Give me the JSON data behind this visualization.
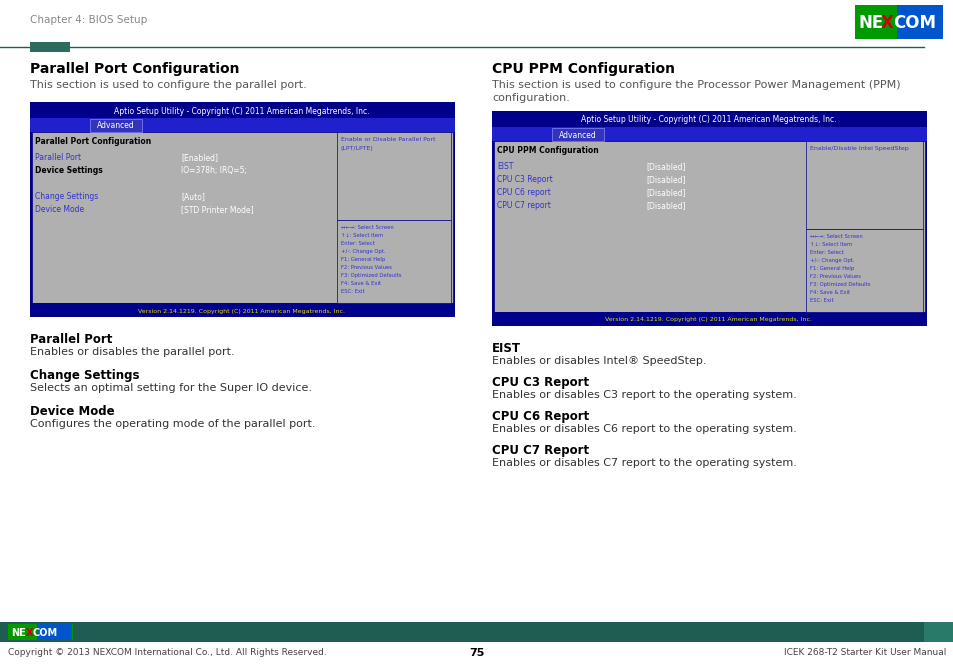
{
  "page_title": "Chapter 4: BIOS Setup",
  "left_section": {
    "title": "Parallel Port Configuration",
    "subtitle": "This section is used to configure the parallel port.",
    "bios_header": "Aptio Setup Utility - Copyright (C) 2011 American Megatrends, Inc.",
    "bios_tab": "Advanced",
    "bios_section_title": "Parallel Port Configuration",
    "bios_items": [
      {
        "label": "Parallel Port",
        "value": "[Enabled]",
        "bold_label": false,
        "blue_label": true
      },
      {
        "label": "Device Settings",
        "value": "IO=378h; IRQ=5;",
        "bold_label": true,
        "blue_label": false
      },
      {
        "label": "",
        "value": "",
        "bold_label": false,
        "blue_label": false
      },
      {
        "label": "Change Settings",
        "value": "[Auto]",
        "bold_label": false,
        "blue_label": true
      },
      {
        "label": "Device Mode",
        "value": "[STD Printer Mode]",
        "bold_label": false,
        "blue_label": true
      }
    ],
    "bios_help_title": "Enable or Disable Parallel Port\n(LPT/LPTE)",
    "bios_keys": [
      "↔←→: Select Screen",
      "↑↓: Select Item",
      "Enter: Select",
      "+/-: Change Opt.",
      "F1: General Help",
      "F2: Previous Values",
      "F3: Optimized Defaults",
      "F4: Save & Exit",
      "ESC: Exit"
    ],
    "bios_footer": "Version 2.14.1219. Copyright (C) 2011 American Megatrends, Inc.",
    "descriptions": [
      {
        "title": "Parallel Port",
        "text": "Enables or disables the parallel port."
      },
      {
        "title": "Change Settings",
        "text": "Selects an optimal setting for the Super IO device."
      },
      {
        "title": "Device Mode",
        "text": "Configures the operating mode of the parallel port."
      }
    ]
  },
  "right_section": {
    "title": "CPU PPM Configuration",
    "subtitle_line1": "This section is used to configure the Processor Power Management (PPM)",
    "subtitle_line2": "configuration.",
    "bios_header": "Aptio Setup Utility - Copyright (C) 2011 American Megatrends, Inc.",
    "bios_tab": "Advanced",
    "bios_section_title": "CPU PPM Configuration",
    "bios_items": [
      {
        "label": "EIST",
        "value": "[Disabled]",
        "bold_label": false,
        "blue_label": true
      },
      {
        "label": "CPU C3 Report",
        "value": "[Disabled]",
        "bold_label": false,
        "blue_label": true
      },
      {
        "label": "CPU C6 report",
        "value": "[Disabled]",
        "bold_label": false,
        "blue_label": true
      },
      {
        "label": "CPU C7 report",
        "value": "[Disabled]",
        "bold_label": false,
        "blue_label": true
      }
    ],
    "bios_help_title": "Enable/Disable Intel SpeedStep",
    "bios_keys": [
      "↔←→: Select Screen",
      "↑↓: Select Item",
      "Enter: Select",
      "+/-: Change Opt.",
      "F1: General Help",
      "F2: Previous Values",
      "F3: Optimized Defaults",
      "F4: Save & Exit",
      "ESC: Exit"
    ],
    "bios_footer": "Version 2.14.1219. Copyright (C) 2011 American Megatrends, Inc.",
    "descriptions": [
      {
        "title": "EIST",
        "text": "Enables or disables Intel® SpeedStep."
      },
      {
        "title": "CPU C3 Report",
        "text": "Enables or disables C3 report to the operating system."
      },
      {
        "title": "CPU C6 Report",
        "text": "Enables or disables C6 report to the operating system."
      },
      {
        "title": "CPU C7 Report",
        "text": "Enables or disables C7 report to the operating system."
      }
    ]
  },
  "footer": {
    "copyright": "Copyright © 2013 NEXCOM International Co., Ltd. All Rights Reserved.",
    "page_number": "75",
    "right_text": "ICEK 268-T2 Starter Kit User Manual"
  },
  "colors": {
    "dark_blue": "#00008b",
    "medium_blue": "#2020cc",
    "tab_blue": "#3333bb",
    "gray_bg": "#b0b0b0",
    "teal_dark": "#1f5c52",
    "teal_accent": "#2d6b5e",
    "bios_blue_text": "#3333cc",
    "bios_yellow": "#dddd00",
    "footer_teal": "#1f5c52"
  }
}
